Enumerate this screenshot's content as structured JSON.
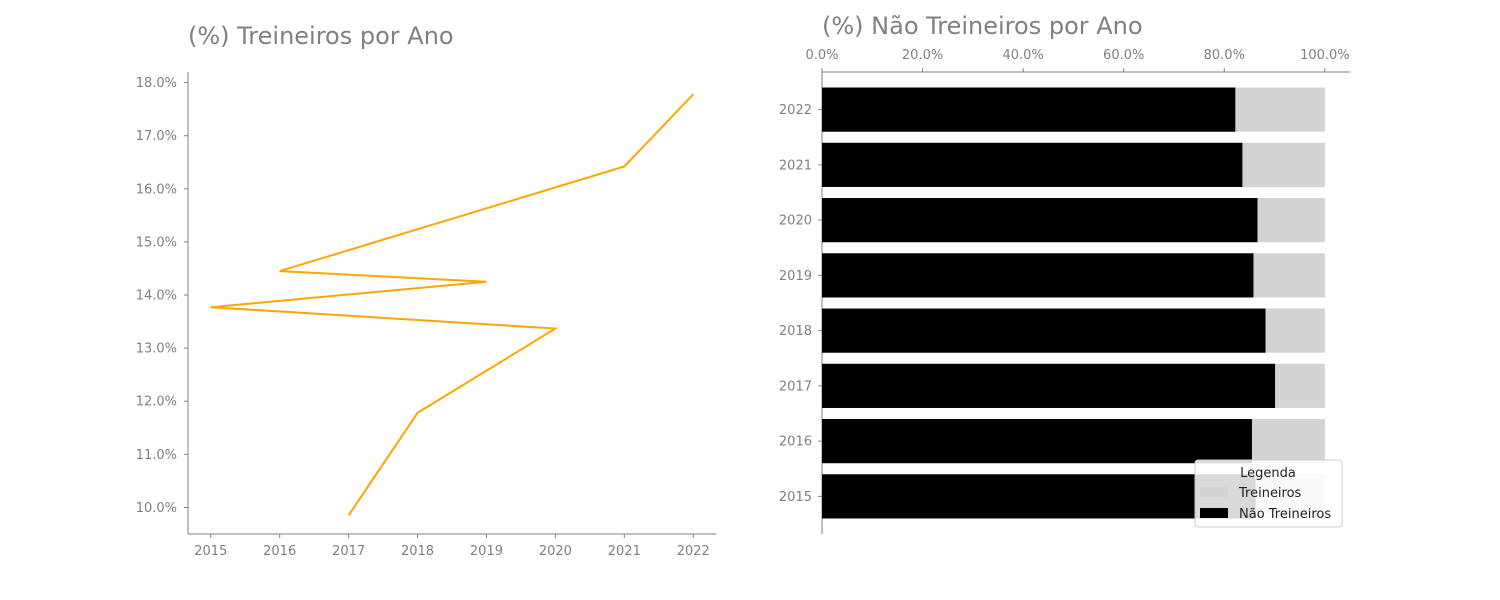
{
  "chart_data": [
    {
      "type": "line",
      "title": "(%) Treineiros por Ano",
      "xlabel": "",
      "ylabel": "",
      "x": [
        2017,
        2018,
        2020,
        2015,
        2019,
        2016,
        2021,
        2022
      ],
      "y": [
        9.85,
        11.78,
        13.37,
        13.77,
        14.25,
        14.45,
        16.42,
        17.78
      ],
      "x_ticks": [
        "2015",
        "2016",
        "2017",
        "2018",
        "2019",
        "2020",
        "2021",
        "2022"
      ],
      "y_ticks": [
        "10.0%",
        "11.0%",
        "12.0%",
        "13.0%",
        "14.0%",
        "15.0%",
        "16.0%",
        "17.0%",
        "18.0%"
      ],
      "xlim": [
        2014.67,
        2022.33
      ],
      "ylim": [
        9.5,
        18.2
      ],
      "grid": false,
      "color": "#ffa500"
    },
    {
      "type": "bar",
      "orientation": "horizontal",
      "stacked": true,
      "title": "(%) Não Treineiros por Ano",
      "xlabel": "",
      "ylabel": "",
      "categories": [
        "2022",
        "2021",
        "2020",
        "2019",
        "2018",
        "2017",
        "2016",
        "2015"
      ],
      "series": [
        {
          "name": "Não Treineiros",
          "color": "#000000",
          "values": [
            82.2,
            83.6,
            86.6,
            85.8,
            88.2,
            90.1,
            85.5,
            86.2
          ]
        },
        {
          "name": "Treineiros",
          "color": "#d3d3d3",
          "values": [
            17.8,
            16.4,
            13.4,
            14.2,
            11.8,
            9.9,
            14.5,
            13.8
          ]
        }
      ],
      "x_ticks": [
        "0.0%",
        "20.0%",
        "40.0%",
        "60.0%",
        "80.0%",
        "100.0%"
      ],
      "xlim": [
        0,
        105
      ],
      "grid": false,
      "legend": {
        "title": "Legenda",
        "position": "bottom-right",
        "items": [
          "Treineiros",
          "Não Treineiros"
        ]
      }
    }
  ]
}
